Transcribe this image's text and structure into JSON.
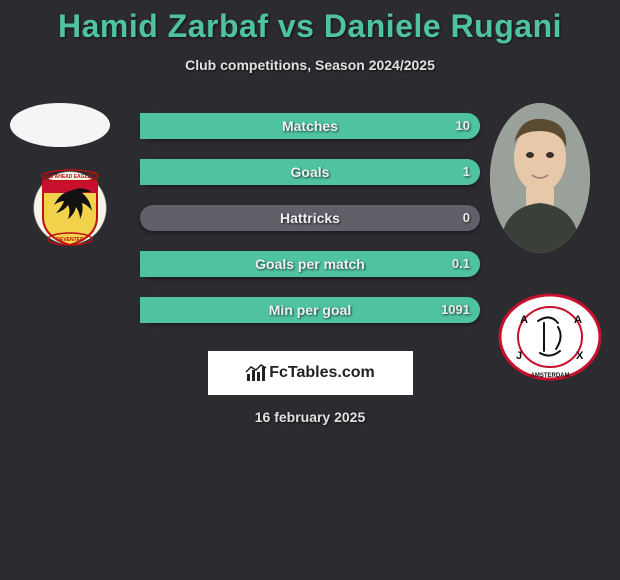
{
  "title": "Hamid Zarbaf vs Daniele Rugani",
  "subtitle": "Club competitions, Season 2024/2025",
  "date": "16 february 2025",
  "brand": "FcTables.com",
  "colors": {
    "background": "#2b2b30",
    "accent": "#4fc3a1",
    "bar_base": "#606068",
    "bar_left_fill": "#9aa0a8",
    "text": "#f0f0f0"
  },
  "player1": {
    "name": "Hamid Zarbaf",
    "club_name": "Go Ahead Eagles Deventer"
  },
  "player2": {
    "name": "Daniele Rugani",
    "club_name": "Ajax"
  },
  "stats": [
    {
      "label": "Matches",
      "left_val": "",
      "right_val": "10",
      "left_pct": 0,
      "right_pct": 100
    },
    {
      "label": "Goals",
      "left_val": "",
      "right_val": "1",
      "left_pct": 0,
      "right_pct": 100
    },
    {
      "label": "Hattricks",
      "left_val": "",
      "right_val": "0",
      "left_pct": 0,
      "right_pct": 0
    },
    {
      "label": "Goals per match",
      "left_val": "",
      "right_val": "0.1",
      "left_pct": 0,
      "right_pct": 100
    },
    {
      "label": "Min per goal",
      "left_val": "",
      "right_val": "1091",
      "left_pct": 0,
      "right_pct": 100
    }
  ]
}
